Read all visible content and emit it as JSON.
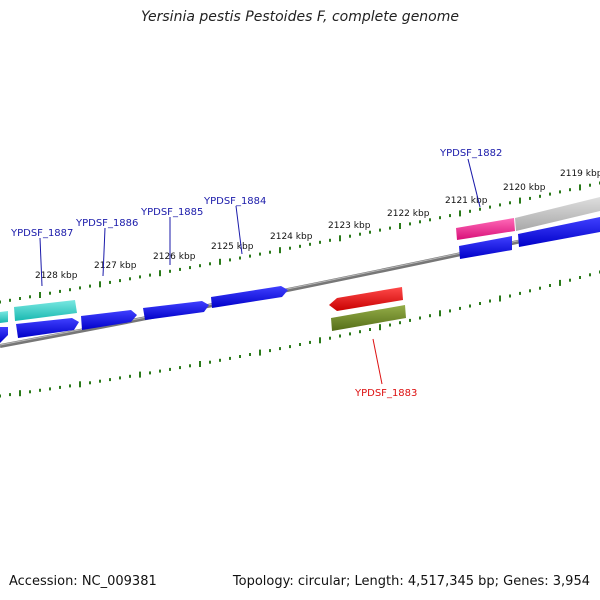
{
  "header": {
    "title": "Yersinia pestis Pestoides F, complete genome"
  },
  "footer": {
    "accession": "Accession: NC_009381",
    "stats": "Topology: circular; Length: 4,517,345 bp; Genes: 3,954"
  },
  "ticks": [
    "2119 kbp",
    "2120 kbp",
    "2121 kbp",
    "2122 kbp",
    "2123 kbp",
    "2124 kbp",
    "2125 kbp",
    "2126 kbp",
    "2127 kbp",
    "2128 kbp"
  ],
  "gene_labels": [
    "YPDSF_1882",
    "YPDSF_1883",
    "YPDSF_1884",
    "YPDSF_1885",
    "YPDSF_1886",
    "YPDSF_1887"
  ],
  "colors": {
    "backbone": "#808080",
    "tick": "#2a7a1a",
    "cds_blue": "#1010e8",
    "cyan": "#2ccfc8",
    "pink": "#ee1a8a",
    "gray_feature": "#bdbdbd",
    "red": "#ee1010",
    "olive": "#6e8a28",
    "label_blue": "#1a1aaa",
    "label_red": "#dd1111"
  }
}
